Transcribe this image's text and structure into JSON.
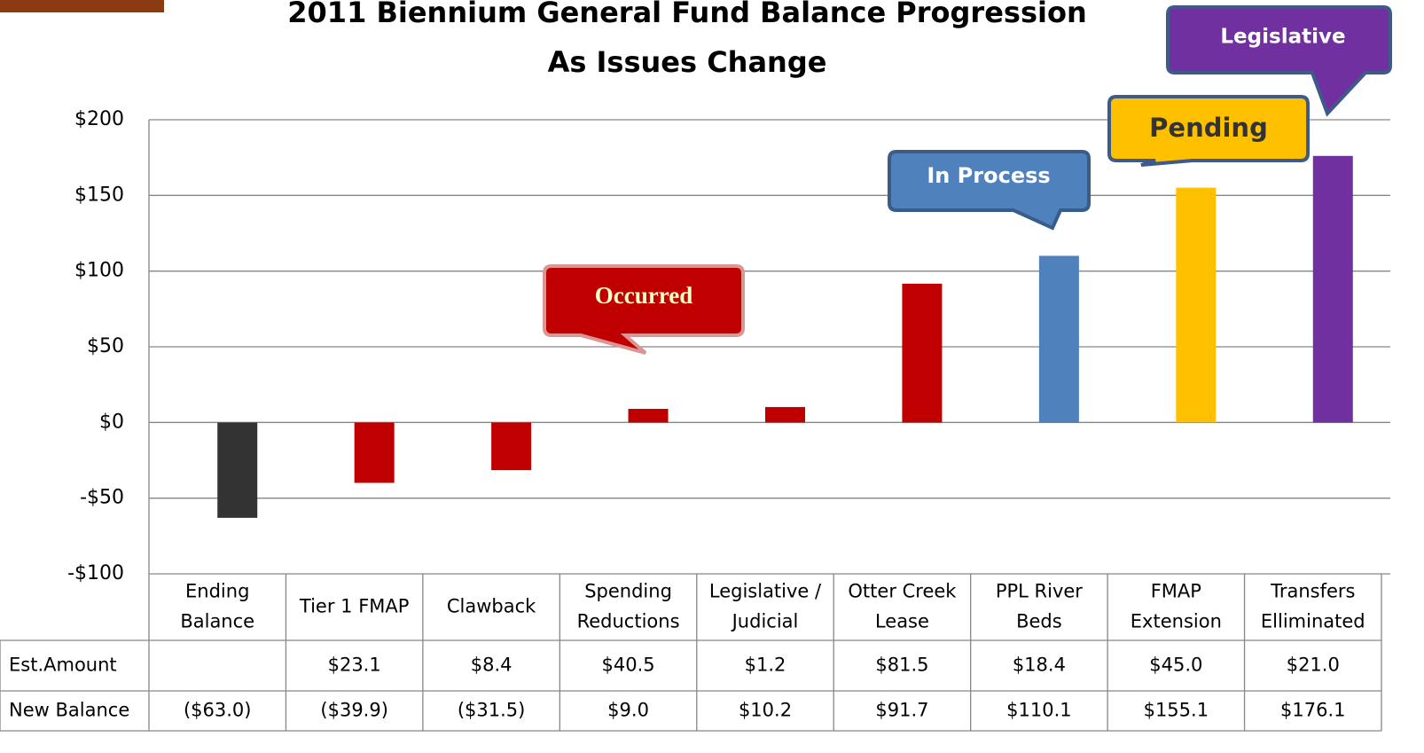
{
  "chart_data": {
    "type": "bar",
    "title": [
      "2011 Biennium General Fund Balance Progression",
      "As Issues Change"
    ],
    "categories": [
      [
        "Ending",
        "Balance"
      ],
      [
        "Tier 1 FMAP"
      ],
      [
        "Clawback"
      ],
      [
        "Spending",
        "Reductions"
      ],
      [
        "Legislative /",
        "Judicial"
      ],
      [
        "Otter Creek",
        "Lease"
      ],
      [
        "PPL River",
        "Beds"
      ],
      [
        "FMAP",
        "Extension"
      ],
      [
        "Transfers",
        "Elliminated"
      ]
    ],
    "series": [
      {
        "name": "New Balance",
        "colors": [
          "#333333",
          "#c00000",
          "#c00000",
          "#c00000",
          "#c00000",
          "#c00000",
          "#4f81bd",
          "#ffc000",
          "#7030a0"
        ],
        "values": [
          -63.0,
          -39.9,
          -31.5,
          9.0,
          10.2,
          91.7,
          110.1,
          155.1,
          176.1
        ],
        "value_labels": [
          "($63.0)",
          "($39.9)",
          "($31.5)",
          "$9.0",
          "$10.2",
          "$91.7",
          "$110.1",
          "$155.1",
          "$176.1"
        ]
      }
    ],
    "est_amount": {
      "name": "Est.Amount",
      "value_labels": [
        null,
        "$23.1",
        "$8.4",
        "$40.5",
        "$1.2",
        "$81.5",
        "$18.4",
        "$45.0",
        "$21.0"
      ]
    },
    "ylim": [
      -100,
      200
    ],
    "yticks": [
      {
        "value": -100,
        "label": "-$100"
      },
      {
        "value": -50,
        "label": "-$50"
      },
      {
        "value": 0,
        "label": "$0"
      },
      {
        "value": 50,
        "label": "$50"
      },
      {
        "value": 100,
        "label": "$100"
      },
      {
        "value": 150,
        "label": "$150"
      },
      {
        "value": 200,
        "label": "$200"
      }
    ],
    "grid": true,
    "annotations": [
      "Occurred",
      "In Process",
      "Pending",
      "Legislative"
    ]
  }
}
